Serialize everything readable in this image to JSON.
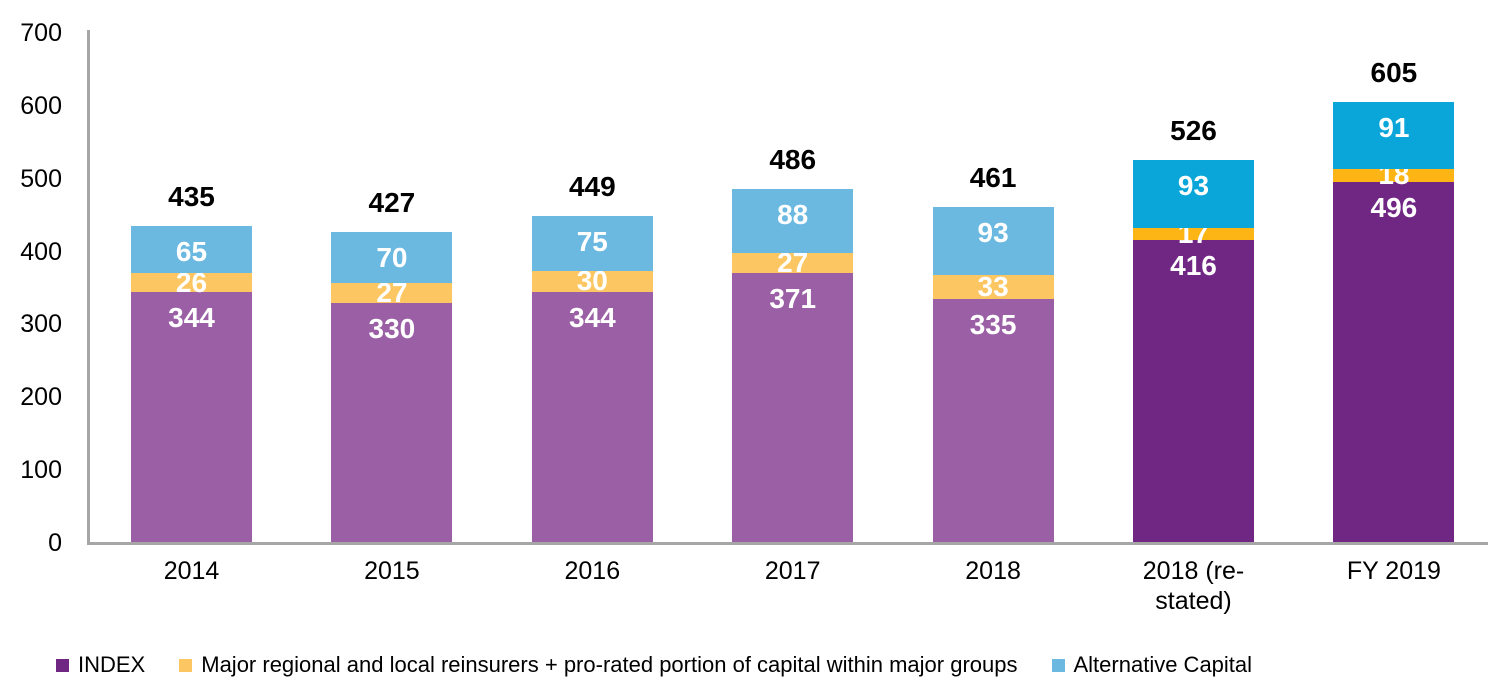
{
  "page": {
    "background": "#FFFFFF"
  },
  "chart_data": {
    "type": "bar",
    "stacked": true,
    "title": "",
    "xlabel": "",
    "ylabel": "",
    "categories": [
      "2014",
      "2015",
      "2016",
      "2017",
      "2018",
      "2018 (re-stated)",
      "FY 2019"
    ],
    "category_label_lines": [
      [
        "2014"
      ],
      [
        "2015"
      ],
      [
        "2016"
      ],
      [
        "2017"
      ],
      [
        "2018"
      ],
      [
        "2018 (re-",
        "stated)"
      ],
      [
        "FY 2019"
      ]
    ],
    "series": [
      {
        "key": "index",
        "name": "INDEX",
        "values": [
          344,
          330,
          344,
          371,
          335,
          416,
          496
        ],
        "color": "#9A5FA5",
        "highlight_color": "#702683",
        "legend_color": "#702683",
        "label_position": "inside-top"
      },
      {
        "key": "major-regional",
        "name": "Major regional and local reinsurers + pro-rated portion of capital within major groups",
        "values": [
          26,
          27,
          30,
          27,
          33,
          17,
          18
        ],
        "color": "#FCC662",
        "highlight_color": "#FDB515",
        "legend_color": "#FCC662",
        "label_position": "center"
      },
      {
        "key": "alternative-capital",
        "name": "Alternative Capital",
        "values": [
          65,
          70,
          75,
          88,
          93,
          93,
          91
        ],
        "color": "#6BB9E1",
        "highlight_color": "#0AA6DA",
        "legend_color": "#6BB9E1",
        "label_position": "inside-top"
      }
    ],
    "totals": [
      435,
      427,
      449,
      486,
      461,
      526,
      605
    ],
    "highlighted_categories": [
      "2018 (re-stated)",
      "FY 2019"
    ],
    "ylim": [
      0,
      700
    ],
    "yticks": [
      0,
      100,
      200,
      300,
      400,
      500,
      600,
      700
    ],
    "grid": false,
    "legend_position": "bottom",
    "axis_color": "#A6A6A6",
    "bar_value_label_color": "#FFFFFF",
    "total_label_color": "#000000",
    "tick_label_color": "#000000"
  }
}
